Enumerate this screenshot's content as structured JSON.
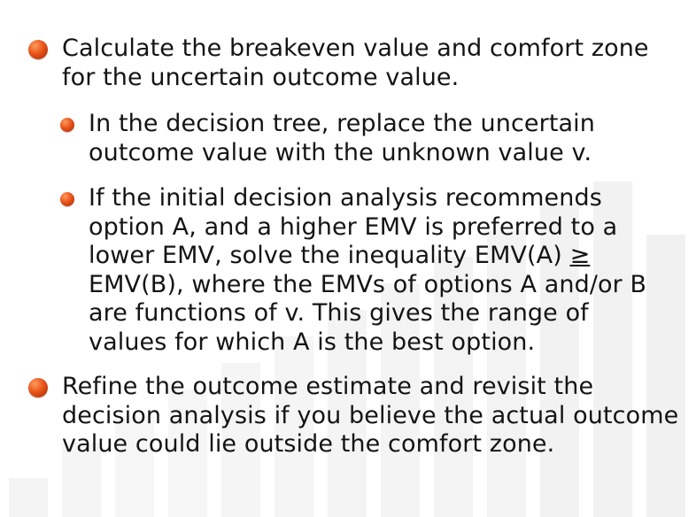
{
  "bullets": [
    {
      "level": 1,
      "text": "Calculate the breakeven value and comfort zone for the uncertain outcome value."
    },
    {
      "level": 2,
      "text": "In the decision tree, replace the uncertain outcome value with the unknown value v."
    },
    {
      "level": 2,
      "text_before": "If the initial decision analysis recommends option A, and a higher EMV is preferred to a lower EMV, solve the inequality EMV(A) ",
      "symbol": "≥",
      "text_after": " EMV(B), where the EMVs of options A and/or B are functions of v. This gives the range of values for which A is the best option."
    },
    {
      "level": 1,
      "text": "Refine the outcome estimate and revisit the decision analysis if you believe the actual outcome value could lie outside the comfort zone."
    }
  ],
  "colors": {
    "bullet_orange": "#e8541a",
    "text": "#141414",
    "background_bars": "#f3f3f3"
  }
}
